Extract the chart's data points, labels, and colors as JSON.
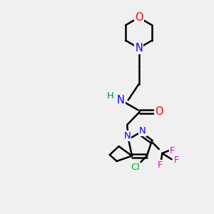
{
  "bg_color": "#f0f0f0",
  "bond_color": "#000000",
  "bond_width": 1.8,
  "atom_colors": {
    "N": "#0000ff",
    "O": "#ff0000",
    "Cl": "#00bb00",
    "F": "#ff00cc",
    "H_label": "#008888",
    "C": "#000000"
  },
  "font_size": 9.5,
  "title": ""
}
